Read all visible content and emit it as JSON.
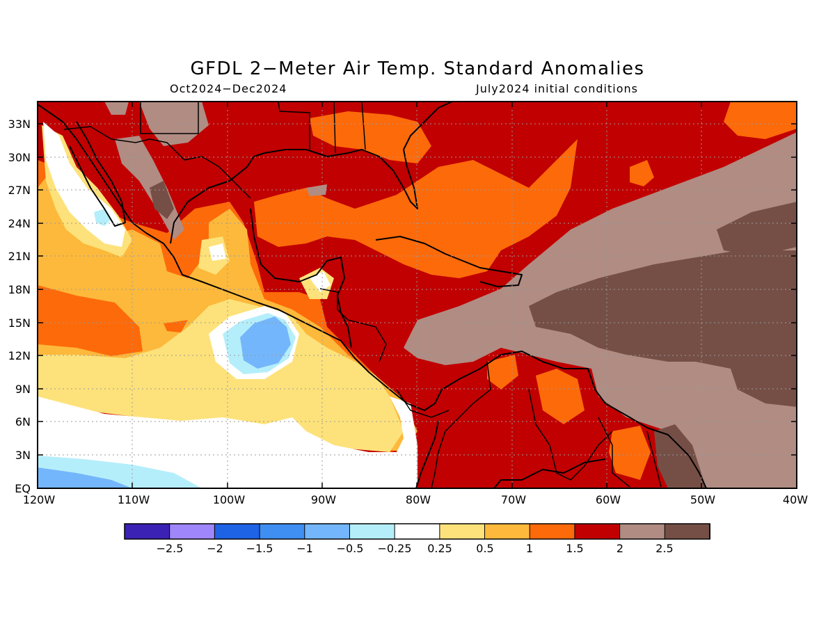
{
  "title": "GFDL 2−Meter Air Temp. Standard Anomalies",
  "subtitle_left": "Oct2024−Dec2024",
  "subtitle_right": "July2024 initial conditions",
  "y_ticks": [
    "33N",
    "30N",
    "27N",
    "24N",
    "21N",
    "18N",
    "15N",
    "12N",
    "9N",
    "6N",
    "3N",
    "EQ"
  ],
  "x_ticks": [
    "120W",
    "110W",
    "100W",
    "90W",
    "80W",
    "70W",
    "60W",
    "50W",
    "40W"
  ],
  "colorbar": {
    "colors": [
      "#3b22b4",
      "#9f86fa",
      "#1e62e6",
      "#3f8ef2",
      "#74b6fb",
      "#b5eefb",
      "#ffffff",
      "#fde27b",
      "#fdb93b",
      "#fd6a0a",
      "#c10001",
      "#b08c83",
      "#754f46"
    ],
    "labels": [
      "−2.5",
      "−2",
      "−1.5",
      "−1",
      "−0.5",
      "−0.25",
      "0.25",
      "0.5",
      "1",
      "1.5",
      "2",
      "2.5"
    ]
  }
}
